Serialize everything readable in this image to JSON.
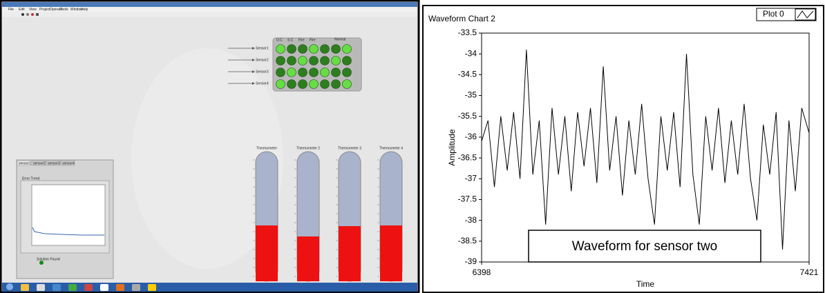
{
  "screenshot": {
    "menu": [
      "File",
      "Edit",
      "View",
      "Project",
      "Operate",
      "Tools",
      "Window",
      "Help"
    ],
    "led_panel": {
      "title": "Normal",
      "columns": [
        "O.C",
        "S.C",
        "Fire",
        "Fire"
      ]
    },
    "sensors": [
      "Sensor1",
      "Sensor2",
      "Sensor3",
      "Sensor4"
    ],
    "thermometers": [
      "Thermometer",
      "Thermometer 2",
      "Thermometer 3",
      "Thermometer 4"
    ],
    "tabs": [
      "sensor1",
      "sensor2",
      "sensor3",
      "sensor4"
    ],
    "trend_title": "Error Trend",
    "indicator": "Solution Found"
  },
  "chart_data": {
    "type": "line",
    "title": "Waveform Chart 2",
    "xlabel": "Time",
    "ylabel": "Amplitude",
    "annotation": "Waveform for sensor two",
    "x": [
      6398,
      6418,
      6438,
      6458,
      6478,
      6498,
      6518,
      6538,
      6558,
      6578,
      6598,
      6618,
      6638,
      6658,
      6678,
      6698,
      6718,
      6738,
      6758,
      6778,
      6798,
      6818,
      6838,
      6858,
      6878,
      6898,
      6918,
      6938,
      6958,
      6978,
      6998,
      7018,
      7038,
      7058,
      7078,
      7098,
      7118,
      7138,
      7158,
      7178,
      7198,
      7218,
      7238,
      7258,
      7278,
      7298,
      7318,
      7338,
      7358,
      7378,
      7398,
      7421
    ],
    "series": [
      {
        "name": "Plot 0",
        "color": "#000000",
        "values": [
          -36.1,
          -35.6,
          -37.2,
          -35.5,
          -36.8,
          -35.4,
          -37.0,
          -33.9,
          -36.9,
          -35.6,
          -38.1,
          -35.3,
          -36.9,
          -35.5,
          -37.3,
          -35.4,
          -36.7,
          -35.3,
          -37.1,
          -34.3,
          -36.8,
          -35.5,
          -37.4,
          -35.6,
          -36.9,
          -35.2,
          -37.0,
          -38.1,
          -35.5,
          -36.8,
          -35.4,
          -37.2,
          -34.0,
          -36.9,
          -38.1,
          -35.5,
          -36.8,
          -35.3,
          -37.1,
          -35.6,
          -36.9,
          -35.2,
          -37.0,
          -38.0,
          -35.7,
          -36.9,
          -35.4,
          -38.7,
          -35.6,
          -37.3,
          -35.3,
          -35.9
        ]
      }
    ],
    "xlim": [
      6398,
      7421
    ],
    "ylim": [
      -39,
      -33.5
    ],
    "xticks": [
      6398,
      7421
    ],
    "yticks": [
      -33.5,
      -34,
      -34.5,
      -35,
      -35.5,
      -36,
      -36.5,
      -37,
      -37.5,
      -38,
      -38.5,
      -39
    ]
  }
}
